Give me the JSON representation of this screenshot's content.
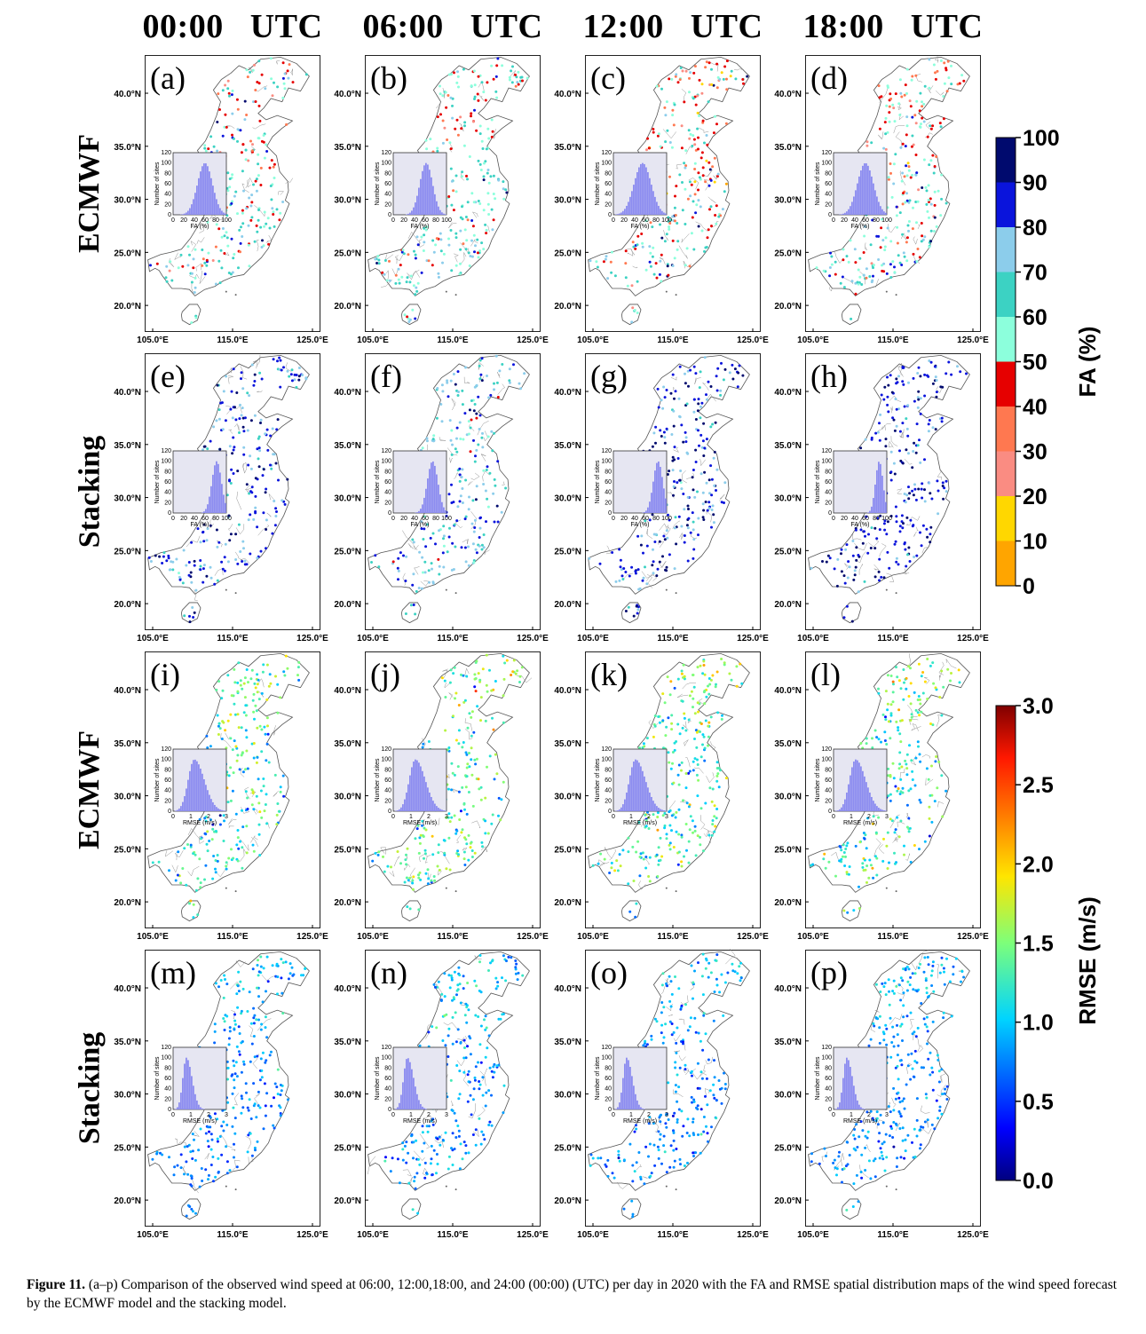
{
  "column_titles": [
    "00:00   UTC",
    "06:00   UTC",
    "12:00   UTC",
    "18:00   UTC"
  ],
  "row_titles": [
    "ECMWF",
    "Stacking",
    "ECMWF",
    "Stacking"
  ],
  "map_axes": {
    "lat_labels": [
      "40.0°N",
      "35.0°N",
      "30.0°N",
      "25.0°N",
      "20.0°N"
    ],
    "lon_labels": [
      "105.0°E",
      "115.0°E",
      "125.0°E"
    ]
  },
  "panels": [
    {
      "letter": "(a)",
      "row": 0,
      "col": 0,
      "metric": "FA",
      "hist_peak": 60,
      "hist_spread": 14
    },
    {
      "letter": "(b)",
      "row": 0,
      "col": 1,
      "metric": "FA",
      "hist_peak": 62,
      "hist_spread": 12
    },
    {
      "letter": "(c)",
      "row": 0,
      "col": 2,
      "metric": "FA",
      "hist_peak": 55,
      "hist_spread": 16
    },
    {
      "letter": "(d)",
      "row": 0,
      "col": 3,
      "metric": "FA",
      "hist_peak": 60,
      "hist_spread": 15
    },
    {
      "letter": "(e)",
      "row": 1,
      "col": 0,
      "metric": "FA",
      "hist_peak": 82,
      "hist_spread": 9
    },
    {
      "letter": "(f)",
      "row": 1,
      "col": 1,
      "metric": "FA",
      "hist_peak": 74,
      "hist_spread": 10
    },
    {
      "letter": "(g)",
      "row": 1,
      "col": 2,
      "metric": "FA",
      "hist_peak": 84,
      "hist_spread": 9
    },
    {
      "letter": "(h)",
      "row": 1,
      "col": 3,
      "metric": "FA",
      "hist_peak": 86,
      "hist_spread": 7
    },
    {
      "letter": "(i)",
      "row": 2,
      "col": 0,
      "metric": "RMSE",
      "hist_peak": 1.2,
      "hist_spread": 0.35
    },
    {
      "letter": "(j)",
      "row": 2,
      "col": 1,
      "metric": "RMSE",
      "hist_peak": 1.25,
      "hist_spread": 0.35
    },
    {
      "letter": "(k)",
      "row": 2,
      "col": 2,
      "metric": "RMSE",
      "hist_peak": 1.25,
      "hist_spread": 0.35
    },
    {
      "letter": "(l)",
      "row": 2,
      "col": 3,
      "metric": "RMSE",
      "hist_peak": 1.25,
      "hist_spread": 0.35
    },
    {
      "letter": "(m)",
      "row": 3,
      "col": 0,
      "metric": "RMSE",
      "hist_peak": 0.75,
      "hist_spread": 0.2
    },
    {
      "letter": "(n)",
      "row": 3,
      "col": 1,
      "metric": "RMSE",
      "hist_peak": 0.8,
      "hist_spread": 0.22
    },
    {
      "letter": "(o)",
      "row": 3,
      "col": 2,
      "metric": "RMSE",
      "hist_peak": 0.75,
      "hist_spread": 0.2
    },
    {
      "letter": "(p)",
      "row": 3,
      "col": 3,
      "metric": "RMSE",
      "hist_peak": 0.75,
      "hist_spread": 0.2
    }
  ],
  "inset": {
    "ylabel": "Number of sites",
    "yticks": [
      "120",
      "100",
      "80",
      "60",
      "40",
      "20",
      "0"
    ],
    "fa_xlabel": "FA (%)",
    "fa_xticks": [
      "0",
      "20",
      "40",
      "60",
      "80",
      "100"
    ],
    "rmse_xlabel": "RMSE (m/s)",
    "rmse_xticks": [
      "0",
      "1",
      "2",
      "3"
    ]
  },
  "colorbar_fa": {
    "title": "FA (%)",
    "ticks": [
      "100",
      "90",
      "80",
      "70",
      "60",
      "50",
      "40",
      "30",
      "20",
      "10",
      "0"
    ],
    "colors": [
      "#000a6e",
      "#0a14dc",
      "#8ccdeb",
      "#3cd2c3",
      "#8cffdc",
      "#e60000",
      "#ff7850",
      "#fa8c82",
      "#ffd700",
      "#ffa500"
    ]
  },
  "colorbar_rmse": {
    "title": "RMSE (m/s)",
    "ticks": [
      "3.0",
      "2.5",
      "2.0",
      "1.5",
      "1.0",
      "0.5",
      "0.0"
    ]
  },
  "caption": {
    "label": "Figure 11.",
    "text": "  (a–p) Comparison of the observed wind speed at 06:00, 12:00,18:00, and 24:00 (00:00) (UTC) per day in 2020 with the FA and RMSE spatial distribution maps of the wind speed forecast by the ECMWF model and the stacking model."
  }
}
